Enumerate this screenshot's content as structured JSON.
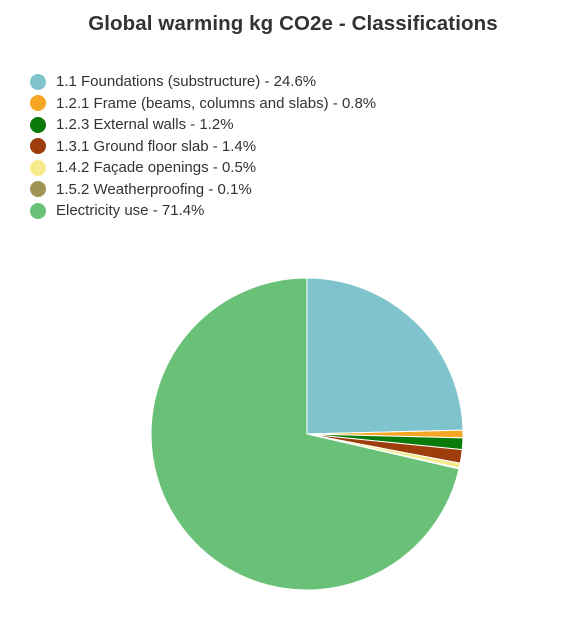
{
  "chart_data": {
    "type": "pie",
    "title": "Global warming kg CO2e - Classifications",
    "legend_position": "top-left",
    "start_angle_deg": 0,
    "direction": "clockwise",
    "slices": [
      {
        "label": "1.1 Foundations (substructure) - 24.6%",
        "category": "1.1 Foundations (substructure)",
        "value": 24.6,
        "color": "#7fc4cc"
      },
      {
        "label": "1.2.1 Frame (beams, columns and slabs) - 0.8%",
        "category": "1.2.1 Frame (beams, columns and slabs)",
        "value": 0.8,
        "color": "#f5a623"
      },
      {
        "label": "1.2.3 External walls - 1.2%",
        "category": "1.2.3 External walls",
        "value": 1.2,
        "color": "#0a7a0a"
      },
      {
        "label": "1.3.1 Ground floor slab - 1.4%",
        "category": "1.3.1 Ground floor slab",
        "value": 1.4,
        "color": "#9c3d0b"
      },
      {
        "label": "1.4.2 Façade openings - 0.5%",
        "category": "1.4.2 Façade openings",
        "value": 0.5,
        "color": "#f6eb8a"
      },
      {
        "label": "1.5.2 Weatherproofing - 0.1%",
        "category": "1.5.2 Weatherproofing",
        "value": 0.1,
        "color": "#a09356"
      },
      {
        "label": "Electricity use - 71.4%",
        "category": "Electricity use",
        "value": 71.4,
        "color": "#69c178"
      }
    ]
  }
}
